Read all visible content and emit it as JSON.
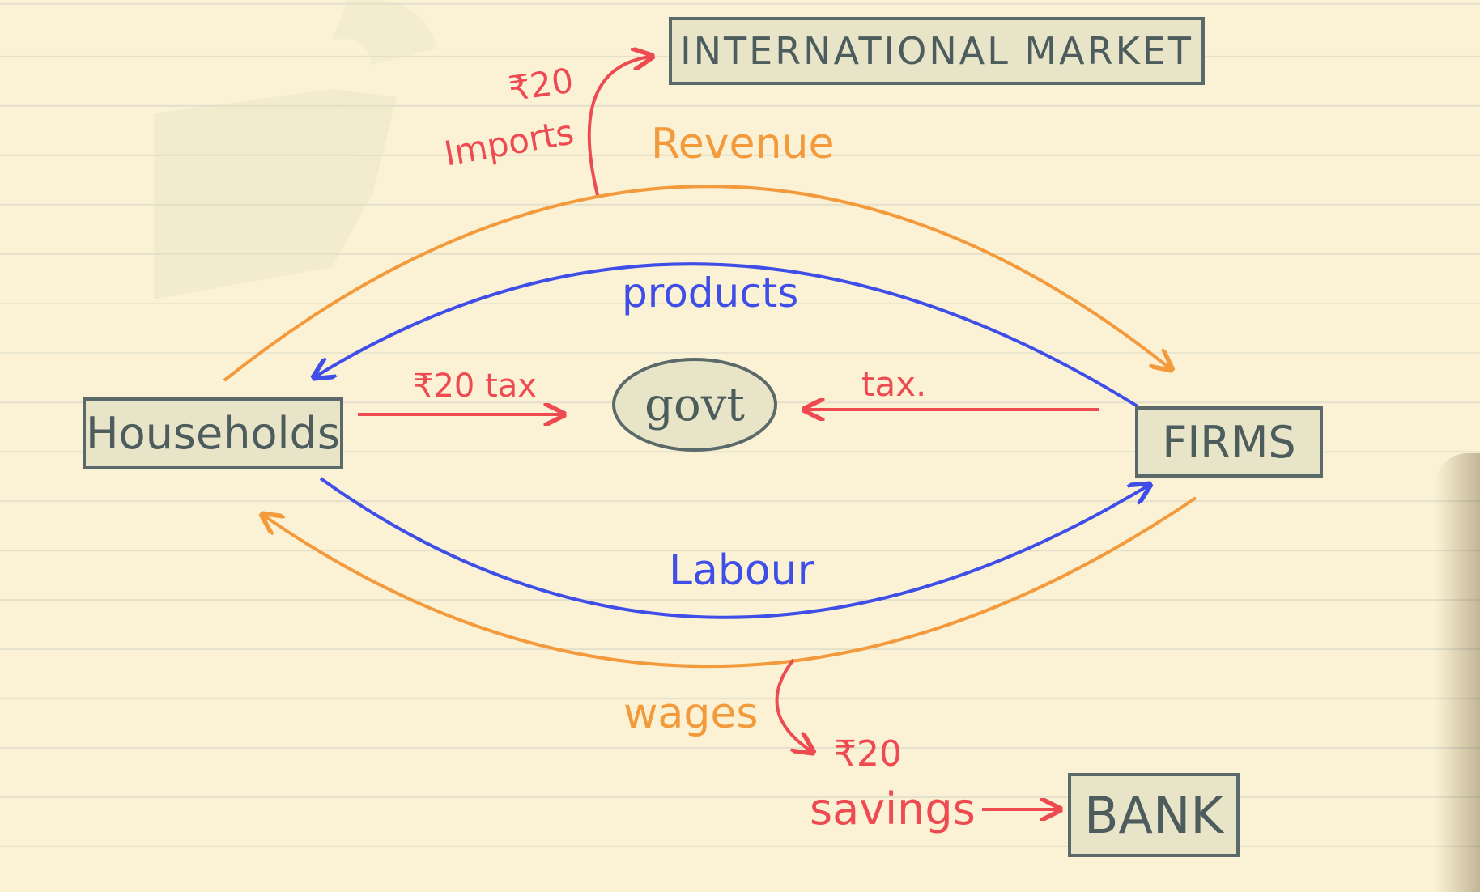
{
  "nodes": {
    "international_market": "INTERNATIONAL MARKET",
    "households": "Households",
    "firms": "FIRMS",
    "govt": "govt",
    "bank": "BANK"
  },
  "flows": {
    "revenue": "Revenue",
    "products": "products",
    "labour": "Labour",
    "wages": "wages",
    "household_tax": "₹20 tax",
    "firm_tax": "tax.",
    "imports_amount": "₹20",
    "imports_label": "Imports",
    "savings_amount": "₹20",
    "savings_label": "savings"
  },
  "colors": {
    "paper": "#fbf2d5",
    "orange_flow": "#f39a3c",
    "blue_flow": "#3f4ee6",
    "red_flow": "#ee4a52",
    "box_border": "#5a6a6a"
  }
}
